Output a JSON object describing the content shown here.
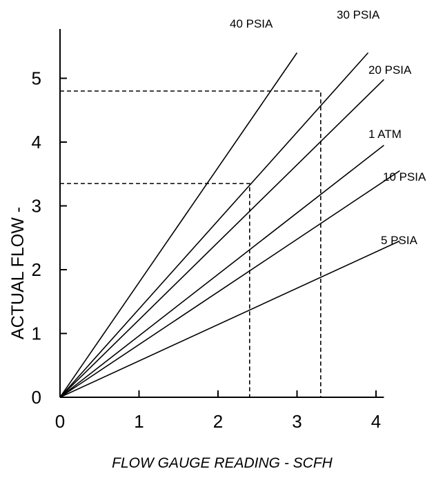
{
  "chart_data": {
    "type": "line",
    "xlabel": "FLOW GAUGE READING - SCFH",
    "ylabel": "ACTUAL FLOW -",
    "xlim": [
      0,
      4.1
    ],
    "ylim": [
      0,
      5.4
    ],
    "x_ticks": [
      "0",
      "1",
      "2",
      "3",
      "4"
    ],
    "y_ticks": [
      "0",
      "1",
      "2",
      "3",
      "4",
      "5"
    ],
    "grid": false,
    "series": [
      {
        "name": "40 PSIA",
        "x": [
          0,
          3.0
        ],
        "y": [
          0,
          5.4
        ]
      },
      {
        "name": "30 PSIA",
        "x": [
          0,
          3.9
        ],
        "y": [
          0,
          5.4
        ]
      },
      {
        "name": "20 PSIA",
        "x": [
          0,
          4.1
        ],
        "y": [
          0,
          4.98
        ]
      },
      {
        "name": "1 ATM",
        "x": [
          0,
          4.1
        ],
        "y": [
          0,
          3.95
        ]
      },
      {
        "name": "10 PSIA",
        "x": [
          0,
          4.3
        ],
        "y": [
          0,
          3.55
        ]
      },
      {
        "name": "5 PSIA",
        "x": [
          0,
          4.3
        ],
        "y": [
          0,
          2.45
        ]
      }
    ],
    "annotations": [
      {
        "type": "reference",
        "x": 2.4,
        "y": 3.35
      },
      {
        "type": "reference",
        "x": 3.3,
        "y": 4.8
      }
    ]
  }
}
